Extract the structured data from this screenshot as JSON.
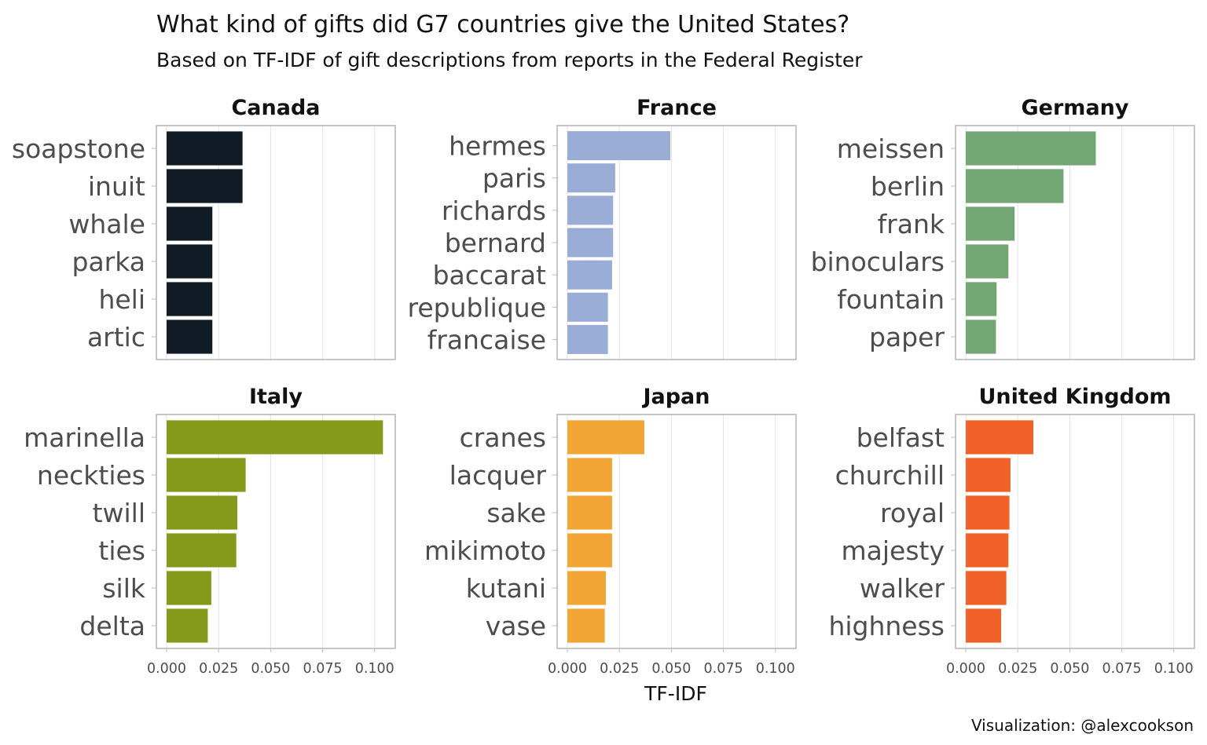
{
  "header": {
    "title": "What kind of gifts did G7 countries give the United States?",
    "subtitle": "Based on TF-IDF of gift descriptions from reports in the Federal Register"
  },
  "caption": "Visualization: @alexcookson",
  "chart_data": {
    "type": "bar",
    "orientation": "horizontal",
    "layout": "small-multiples",
    "columns": 3,
    "grid": true,
    "xlabel": "TF-IDF",
    "xlim": [
      0,
      0.105
    ],
    "x_ticks": [
      0.0,
      0.025,
      0.05,
      0.075,
      0.1
    ],
    "x_tick_labels": [
      "0.000",
      "0.025",
      "0.050",
      "0.075",
      "0.100"
    ],
    "panels": [
      {
        "name": "Canada",
        "color": "#111b26",
        "categories": [
          "soapstone",
          "inuit",
          "whale",
          "parka",
          "heli",
          "artic"
        ],
        "values": [
          0.0365,
          0.0365,
          0.022,
          0.022,
          0.022,
          0.022
        ]
      },
      {
        "name": "France",
        "color": "#9aadd6",
        "categories": [
          "hermes",
          "paris",
          "richards",
          "bernard",
          "baccarat",
          "republique",
          "francaise"
        ],
        "values": [
          0.0495,
          0.023,
          0.022,
          0.022,
          0.0215,
          0.0195,
          0.0195
        ]
      },
      {
        "name": "Germany",
        "color": "#72a674",
        "categories": [
          "meissen",
          "berlin",
          "frank",
          "binoculars",
          "fountain",
          "paper"
        ],
        "values": [
          0.0625,
          0.047,
          0.0235,
          0.0205,
          0.0148,
          0.0145
        ]
      },
      {
        "name": "Italy",
        "color": "#859a1a",
        "categories": [
          "marinella",
          "neckties",
          "twill",
          "ties",
          "silk",
          "delta"
        ],
        "values": [
          0.104,
          0.038,
          0.034,
          0.0335,
          0.0215,
          0.0198
        ]
      },
      {
        "name": "Japan",
        "color": "#f0a535",
        "categories": [
          "cranes",
          "lacquer",
          "sake",
          "mikimoto",
          "kutani",
          "vase"
        ],
        "values": [
          0.037,
          0.0215,
          0.0215,
          0.0215,
          0.0185,
          0.018
        ]
      },
      {
        "name": "United Kingdom",
        "color": "#f06228",
        "categories": [
          "belfast",
          "churchill",
          "royal",
          "majesty",
          "walker",
          "highness"
        ],
        "values": [
          0.0325,
          0.0215,
          0.021,
          0.0205,
          0.0195,
          0.017
        ]
      }
    ]
  }
}
